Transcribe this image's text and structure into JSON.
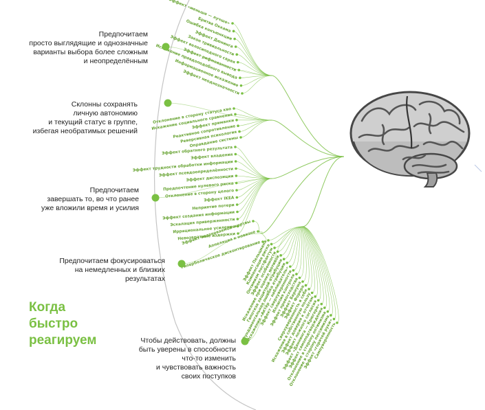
{
  "title_lines": [
    "Когда",
    "быстро",
    "реагируем"
  ],
  "colors": {
    "accent": "#7ac043",
    "text": "#222222",
    "arc": "#c4c4c4",
    "brain_light": "#d7d7d7",
    "brain_dark": "#4a4a4a"
  },
  "icons": [
    "brain-icon"
  ],
  "categories": [
    {
      "lines": [
        "Предпочитаем",
        "просто выглядящие и однозначные",
        "варианты выбора более сложным",
        "и неопределённым"
      ],
      "biases": [
        "Эффект «меньше — лучше»",
        "Бритва Оккама",
        "Ошибка конъюнкции",
        "Эффект Дюнинга",
        "Закон тривиальности",
        "Эффект велосипедного сарая",
        "Эффект рифмованности",
        "Искажение правдоподобного вывода",
        "Информационное искажение",
        "Эффект неоднозначности"
      ]
    },
    {
      "lines": [
        "Склонны сохранять",
        "личную автономию",
        "и текущий статус в группе,",
        "избегая необратимых решений"
      ],
      "biases": [
        "Отклонение в сторону статуса кво",
        "Искажение социального сравнения",
        "Эффект приманки",
        "Реактивное сопротивление",
        "Реверсивная психология",
        "Оправдание системы"
      ]
    },
    {
      "lines": [
        "Предпочитаем",
        "завершать то, во что ранее",
        "уже вложили время и усилия"
      ],
      "biases": [
        "Эффект обратного результата",
        "Эффект владения",
        "Эффект трудности обработки информации",
        "Эффект псевдоопределённости",
        "Эффект диспозиции",
        "Предпочтение нулевого риска",
        "Отклонение в сторону целого",
        "Эффект IKEA",
        "Неприятие потери",
        "Эффект создания информации",
        "Эскалация приверженности",
        "Иррациональное усиление",
        "Невозвратные издержки"
      ]
    },
    {
      "lines": [
        "Предпочитаем фокусироваться",
        "на немедленных и близких",
        "результатах"
      ],
      "biases": [
        "Эффект опознаваемой жертвы",
        "Аппеляция к новизне",
        "Гиперболическое дисконтирование"
      ]
    },
    {
      "lines": [
        "Чтобы действовать, должны",
        "быть уверены в способности",
        "что-то изменить",
        "и чувствовать важность",
        "своих поступков"
      ],
      "biases": [
        "Эффект Пельцмана",
        "Компенсация риска",
        "Оптимизм постфактум",
        "Эффект особенности",
        "Искажение при оценке мотивов",
        "Гипотеза защитной атрибуции",
        "Фундаментальная ошибка атрибуции",
        "Искажение «Актёр — наблюдатель»",
        "Эффект сверхуверенности",
        "Иллюзия контроля",
        "Эффект превосходства",
        "Эффект Барнума",
        "Эффект Форера",
        "Сверхуверенность в себе",
        "Искажение в собственную пользу",
        "Эффект доверия к отчётам",
        "Эффект ложного согласия",
        "Эффект «Даннинга — Крюгера»",
        "Эффект самоподтверждения",
        "Отклонение в сторону оптимизма",
        "Отклонение в сторону пессимизма",
        "Эффект «горячей руки»",
        "Самоуверенность"
      ]
    }
  ]
}
